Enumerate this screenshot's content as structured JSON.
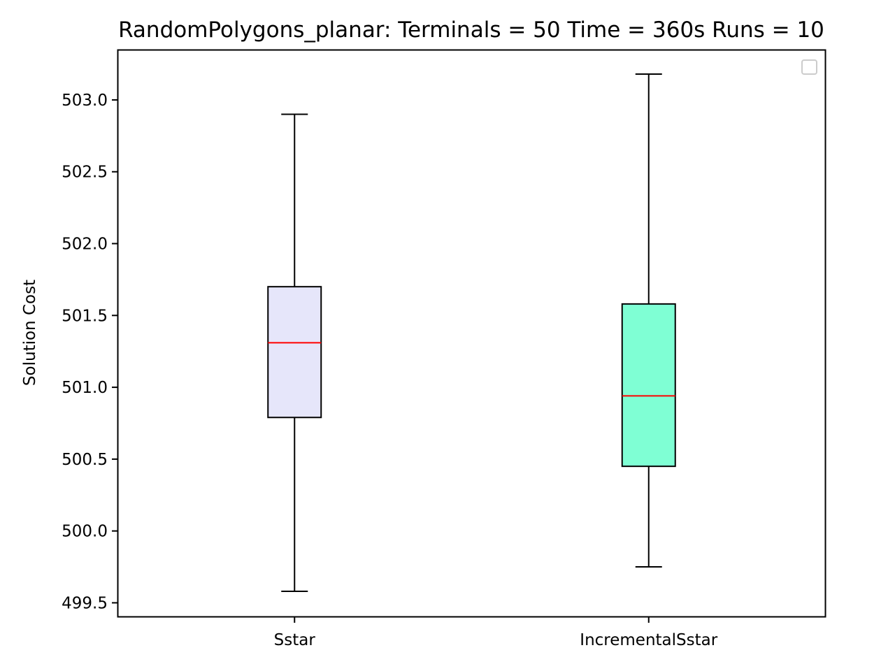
{
  "chart_data": {
    "type": "box",
    "title": "RandomPolygons_planar:  Terminals = 50  Time = 360s  Runs = 10",
    "xlabel": "",
    "ylabel": "Solution Cost",
    "ylim": [
      499.4,
      503.35
    ],
    "yticks": [
      499.5,
      500.0,
      500.5,
      501.0,
      501.5,
      502.0,
      502.5,
      503.0
    ],
    "ytick_labels": [
      "499.5",
      "500.0",
      "500.5",
      "501.0",
      "501.5",
      "502.0",
      "502.5",
      "503.0"
    ],
    "categories": [
      "Sstar",
      "IncrementalSstar"
    ],
    "boxes": [
      {
        "whisker_low": 499.58,
        "q1": 500.79,
        "median": 501.31,
        "q3": 501.7,
        "whisker_high": 502.9,
        "fill": "#e6e6fa"
      },
      {
        "whisker_low": 499.75,
        "q1": 500.45,
        "median": 500.94,
        "q3": 501.58,
        "whisker_high": 503.18,
        "fill": "#7fffd4"
      }
    ],
    "median_color": "#ff0000",
    "legend": {
      "placement": "upper right",
      "entries": []
    },
    "grid": false
  }
}
